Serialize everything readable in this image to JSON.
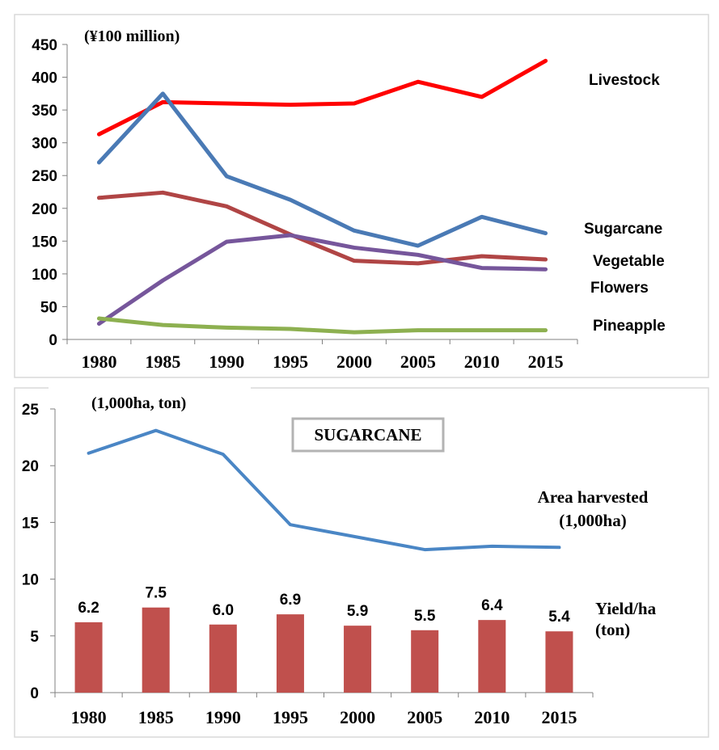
{
  "chart_data": [
    {
      "type": "line",
      "unit_label": "(¥100 million)",
      "categories": [
        "1980",
        "1985",
        "1990",
        "1995",
        "2000",
        "2005",
        "2010",
        "2015"
      ],
      "ylim": [
        0,
        450
      ],
      "yticks": [
        "0",
        "50",
        "100",
        "150",
        "200",
        "250",
        "300",
        "350",
        "400",
        "450"
      ],
      "series": [
        {
          "name": "Livestock",
          "color": "#ff0000",
          "values": [
            313,
            362,
            360,
            358,
            360,
            393,
            370,
            425
          ]
        },
        {
          "name": "Sugarcane",
          "color": "#4a7ab5",
          "values": [
            270,
            375,
            249,
            213,
            166,
            143,
            187,
            162
          ]
        },
        {
          "name": "Vegetable",
          "color": "#b04545",
          "values": [
            216,
            224,
            203,
            160,
            120,
            116,
            127,
            122
          ]
        },
        {
          "name": "Flowers",
          "color": "#76569b",
          "values": [
            24,
            90,
            149,
            159,
            140,
            129,
            109,
            107
          ]
        },
        {
          "name": "Pineapple",
          "color": "#8db050",
          "values": [
            32,
            22,
            18,
            16,
            11,
            14,
            14,
            14
          ]
        }
      ]
    },
    {
      "type": "bar+line",
      "title": "SUGARCANE",
      "unit_label": "(1,000ha, ton)",
      "categories": [
        "1980",
        "1985",
        "1990",
        "1995",
        "2000",
        "2005",
        "2010",
        "2015"
      ],
      "ylim": [
        0,
        25
      ],
      "yticks": [
        "0",
        "5",
        "10",
        "15",
        "20",
        "25"
      ],
      "line_series": {
        "name_line1": "Area harvested",
        "name_line2": "(1,000ha)",
        "color": "#4a86c5",
        "values": [
          21.1,
          23.1,
          21.0,
          14.8,
          13.7,
          12.6,
          12.9,
          12.8
        ]
      },
      "bar_series": {
        "name_line1": "Yield/ha",
        "name_line2": "(ton)",
        "color": "#c0504d",
        "values": [
          6.2,
          7.5,
          6.0,
          6.9,
          5.9,
          5.5,
          6.4,
          5.4
        ],
        "labels": [
          "6.2",
          "7.5",
          "6.0",
          "6.9",
          "5.9",
          "5.5",
          "6.4",
          "5.4"
        ]
      }
    }
  ]
}
